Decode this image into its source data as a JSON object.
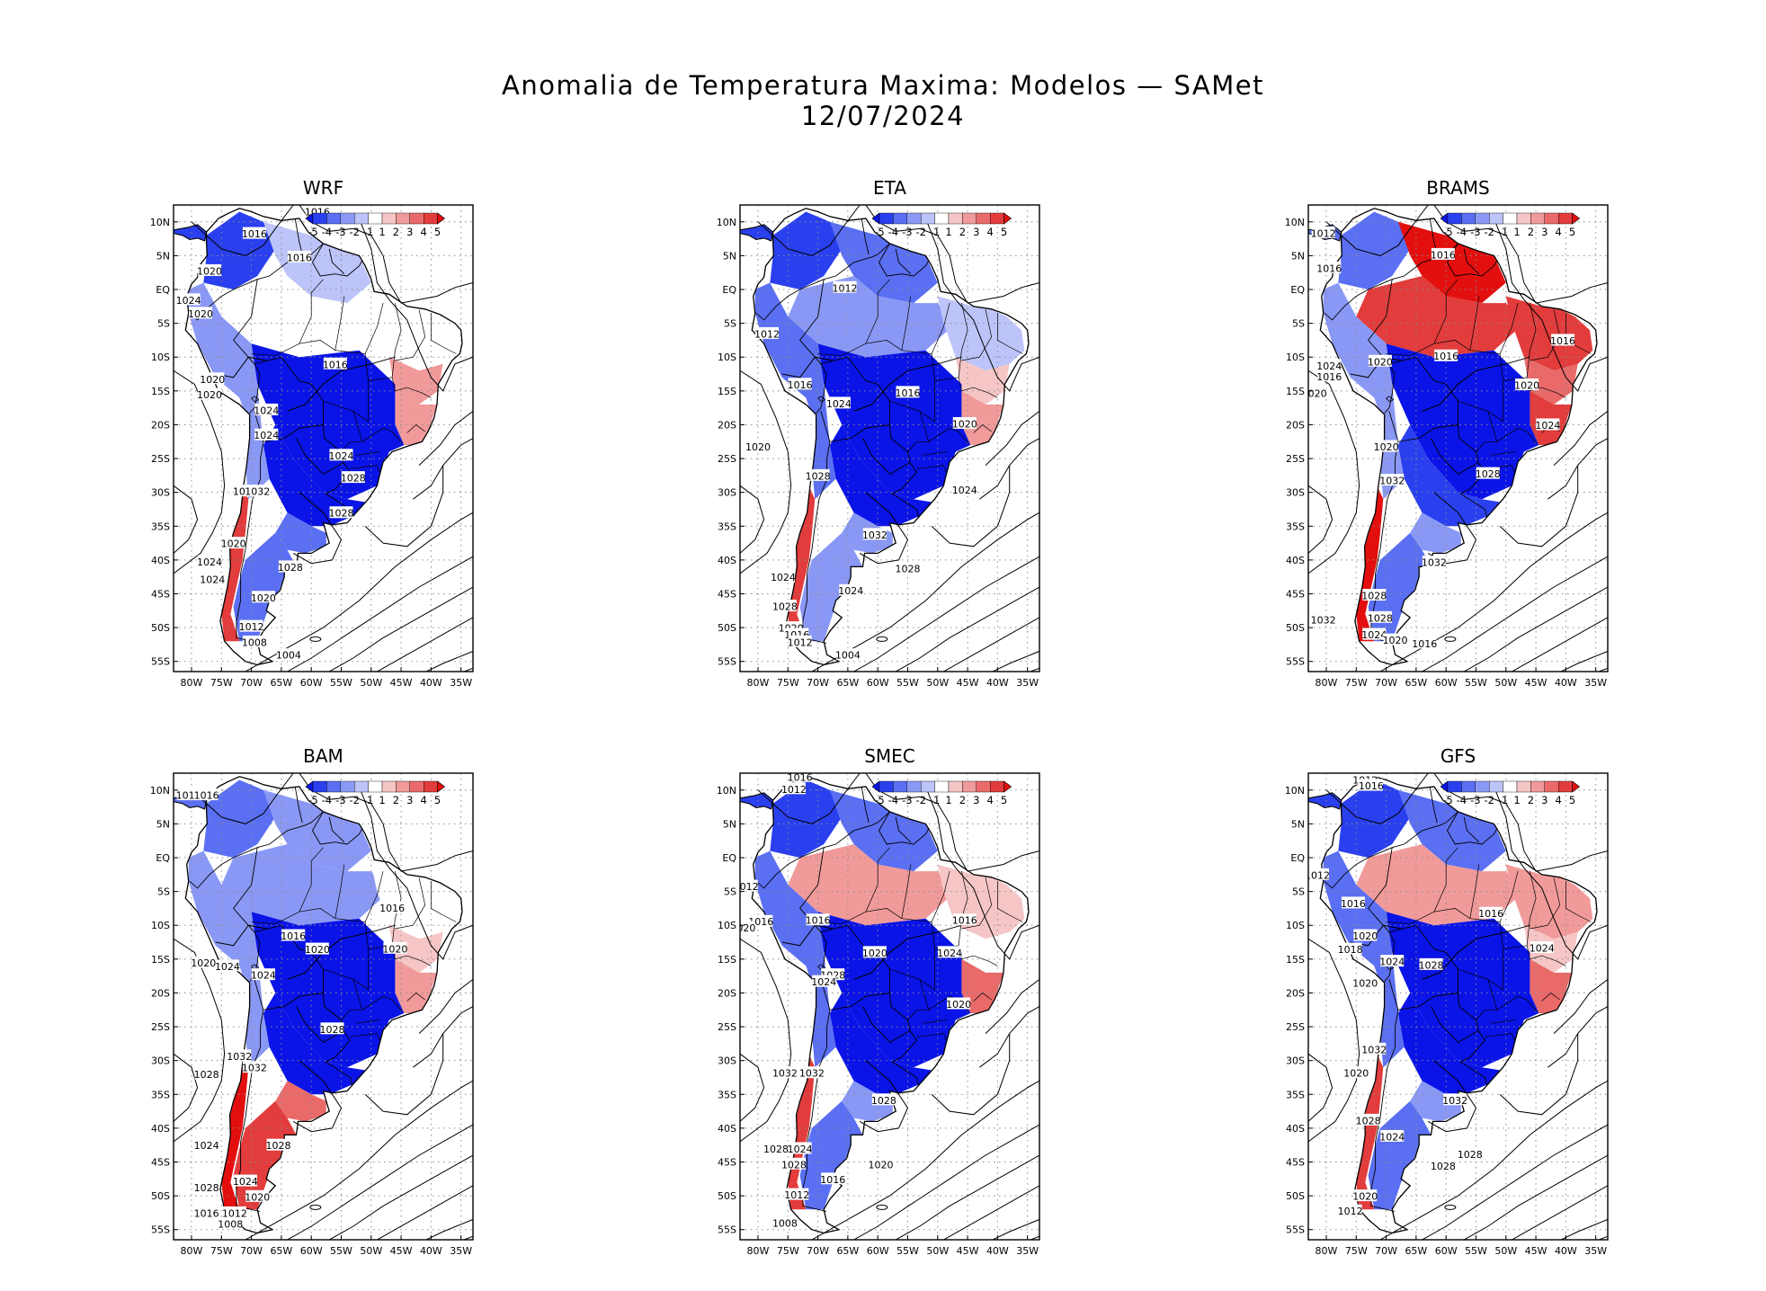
{
  "title": {
    "line1": "Anomalia de Temperatura Maxima: Modelos — SAMet",
    "line2": "12/07/2024"
  },
  "colors": {
    "neg5": "#0a14e6",
    "neg4": "#2a40ee",
    "neg3": "#5a6ff2",
    "neg2": "#8a98f5",
    "neg1": "#bcc4f9",
    "zero": "#ffffff",
    "pos1": "#f6c6c6",
    "pos2": "#f19a9a",
    "pos3": "#ea6a6a",
    "pos4": "#e23c3c",
    "pos5": "#e30f0f"
  },
  "colorbar": {
    "labels": [
      "-5",
      "-4",
      "-3",
      "-2",
      "-1",
      "1",
      "2",
      "3",
      "4",
      "5"
    ]
  },
  "axes": {
    "lat_labels": [
      "10N",
      "5N",
      "EQ",
      "5S",
      "10S",
      "15S",
      "20S",
      "25S",
      "30S",
      "35S",
      "40S",
      "45S",
      "50S",
      "55S"
    ],
    "lon_labels": [
      "80W",
      "75W",
      "70W",
      "65W",
      "60W",
      "55W",
      "50W",
      "45W",
      "40W",
      "35W"
    ]
  },
  "panels": [
    {
      "name": "WRF",
      "anomaly": {
        "north": -0.9,
        "amazon": 0.0,
        "east": 0.3,
        "northeast": 1.5,
        "southeast": 2.2,
        "central": -5.0,
        "south": -4.6,
        "pampa": -2.8,
        "patagonia": -3.5,
        "andes": -2.5,
        "chile": 4.2,
        "colombia": -4.0
      },
      "isobars": [
        {
          "text": "1016"
        },
        {
          "text": "1016"
        },
        {
          "text": "1016"
        },
        {
          "text": "1020"
        },
        {
          "text": "1024"
        },
        {
          "text": "1020"
        },
        {
          "text": "1016"
        },
        {
          "text": "1020"
        },
        {
          "text": "1020"
        },
        {
          "text": "1024"
        },
        {
          "text": "1024"
        },
        {
          "text": "1024"
        },
        {
          "text": "1028"
        },
        {
          "text": "1032"
        },
        {
          "text": "1032"
        },
        {
          "text": "1028"
        },
        {
          "text": "1020"
        },
        {
          "text": "1024"
        },
        {
          "text": "1028"
        },
        {
          "text": "1024"
        },
        {
          "text": "1020"
        },
        {
          "text": "1012"
        },
        {
          "text": "1008"
        },
        {
          "text": "1004"
        }
      ]
    },
    {
      "name": "ETA",
      "anomaly": {
        "north": -3.2,
        "amazon": -1.8,
        "east": -0.8,
        "northeast": 0.6,
        "southeast": 2.0,
        "central": -5.0,
        "south": -4.8,
        "pampa": -2.5,
        "patagonia": -2.0,
        "andes": -2.8,
        "chile": 4.0,
        "colombia": -3.8
      },
      "isobars": [
        {
          "text": "1012"
        },
        {
          "text": "1012"
        },
        {
          "text": "1016"
        },
        {
          "text": "1016"
        },
        {
          "text": "1024"
        },
        {
          "text": "1020"
        },
        {
          "text": "1020"
        },
        {
          "text": "1028"
        },
        {
          "text": "1024"
        },
        {
          "text": "1032"
        },
        {
          "text": "1028"
        },
        {
          "text": "1024"
        },
        {
          "text": "1024"
        },
        {
          "text": "1028"
        },
        {
          "text": "1020"
        },
        {
          "text": "1016"
        },
        {
          "text": "1012"
        },
        {
          "text": "1004"
        }
      ]
    },
    {
      "name": "BRAMS",
      "anomaly": {
        "north": 4.5,
        "amazon": 4.2,
        "east": 4.0,
        "northeast": 2.5,
        "southeast": 3.5,
        "central": -5.0,
        "south": -4.5,
        "pampa": -2.5,
        "patagonia": -3.0,
        "andes": -2.0,
        "chile": 4.8,
        "colombia": -3.5
      },
      "isobars": [
        {
          "text": "1012"
        },
        {
          "text": "1016"
        },
        {
          "text": "1016"
        },
        {
          "text": "1016"
        },
        {
          "text": "1016"
        },
        {
          "text": "1020"
        },
        {
          "text": "1024"
        },
        {
          "text": "1016"
        },
        {
          "text": "1020"
        },
        {
          "text": "1020"
        },
        {
          "text": "1024"
        },
        {
          "text": "1020"
        },
        {
          "text": "1032"
        },
        {
          "text": "1028"
        },
        {
          "text": "1032"
        },
        {
          "text": "1028"
        },
        {
          "text": "1032"
        },
        {
          "text": "1028"
        },
        {
          "text": "1024"
        },
        {
          "text": "1020"
        },
        {
          "text": "1016"
        }
      ]
    },
    {
      "name": "BAM",
      "anomaly": {
        "north": -2.2,
        "amazon": -2.0,
        "east": -0.5,
        "northeast": 1.0,
        "southeast": 2.0,
        "central": -5.0,
        "south": -4.8,
        "pampa": 2.5,
        "patagonia": 4.0,
        "andes": -2.2,
        "chile": 4.5,
        "colombia": -2.8
      },
      "isobars": [
        {
          "text": "1016"
        },
        {
          "text": "1016"
        },
        {
          "text": "1016"
        },
        {
          "text": "1016"
        },
        {
          "text": "1020"
        },
        {
          "text": "1020"
        },
        {
          "text": "1020"
        },
        {
          "text": "1024"
        },
        {
          "text": "1024"
        },
        {
          "text": "1028"
        },
        {
          "text": "1032"
        },
        {
          "text": "1032"
        },
        {
          "text": "1028"
        },
        {
          "text": "1028"
        },
        {
          "text": "1024"
        },
        {
          "text": "1024"
        },
        {
          "text": "1028"
        },
        {
          "text": "1020"
        },
        {
          "text": "1016"
        },
        {
          "text": "1012"
        },
        {
          "text": "1008"
        }
      ]
    },
    {
      "name": "SMEC",
      "anomaly": {
        "north": -3.0,
        "amazon": 1.6,
        "east": 1.4,
        "northeast": 0.4,
        "southeast": 3.0,
        "central": -5.0,
        "south": -4.8,
        "pampa": -2.5,
        "patagonia": -3.2,
        "andes": -2.8,
        "chile": 3.8,
        "colombia": -4.0
      },
      "isobars": [
        {
          "text": "1016"
        },
        {
          "text": "1012"
        },
        {
          "text": "1012"
        },
        {
          "text": "1016"
        },
        {
          "text": "1016"
        },
        {
          "text": "1016"
        },
        {
          "text": "1020"
        },
        {
          "text": "1020"
        },
        {
          "text": "1024"
        },
        {
          "text": "1028"
        },
        {
          "text": "1024"
        },
        {
          "text": "1020"
        },
        {
          "text": "1032"
        },
        {
          "text": "1032"
        },
        {
          "text": "1028"
        },
        {
          "text": "1028"
        },
        {
          "text": "1024"
        },
        {
          "text": "1028"
        },
        {
          "text": "1020"
        },
        {
          "text": "1016"
        },
        {
          "text": "1012"
        },
        {
          "text": "1008"
        }
      ]
    },
    {
      "name": "GFS",
      "anomaly": {
        "north": -3.0,
        "amazon": 2.0,
        "east": 1.6,
        "northeast": 0.6,
        "southeast": 2.8,
        "central": -5.0,
        "south": -4.8,
        "pampa": -2.5,
        "patagonia": -2.8,
        "andes": -2.6,
        "chile": 3.8,
        "colombia": -3.8
      },
      "isobars": [
        {
          "text": "1012"
        },
        {
          "text": "1016"
        },
        {
          "text": "1012"
        },
        {
          "text": "1016"
        },
        {
          "text": "1016"
        },
        {
          "text": "1020"
        },
        {
          "text": "1018"
        },
        {
          "text": "1024"
        },
        {
          "text": "1028"
        },
        {
          "text": "1020"
        },
        {
          "text": "1024"
        },
        {
          "text": "1032"
        },
        {
          "text": "1020"
        },
        {
          "text": "1032"
        },
        {
          "text": "1028"
        },
        {
          "text": "1024"
        },
        {
          "text": "1028"
        },
        {
          "text": "1028"
        },
        {
          "text": "1020"
        },
        {
          "text": "1012"
        }
      ]
    }
  ]
}
